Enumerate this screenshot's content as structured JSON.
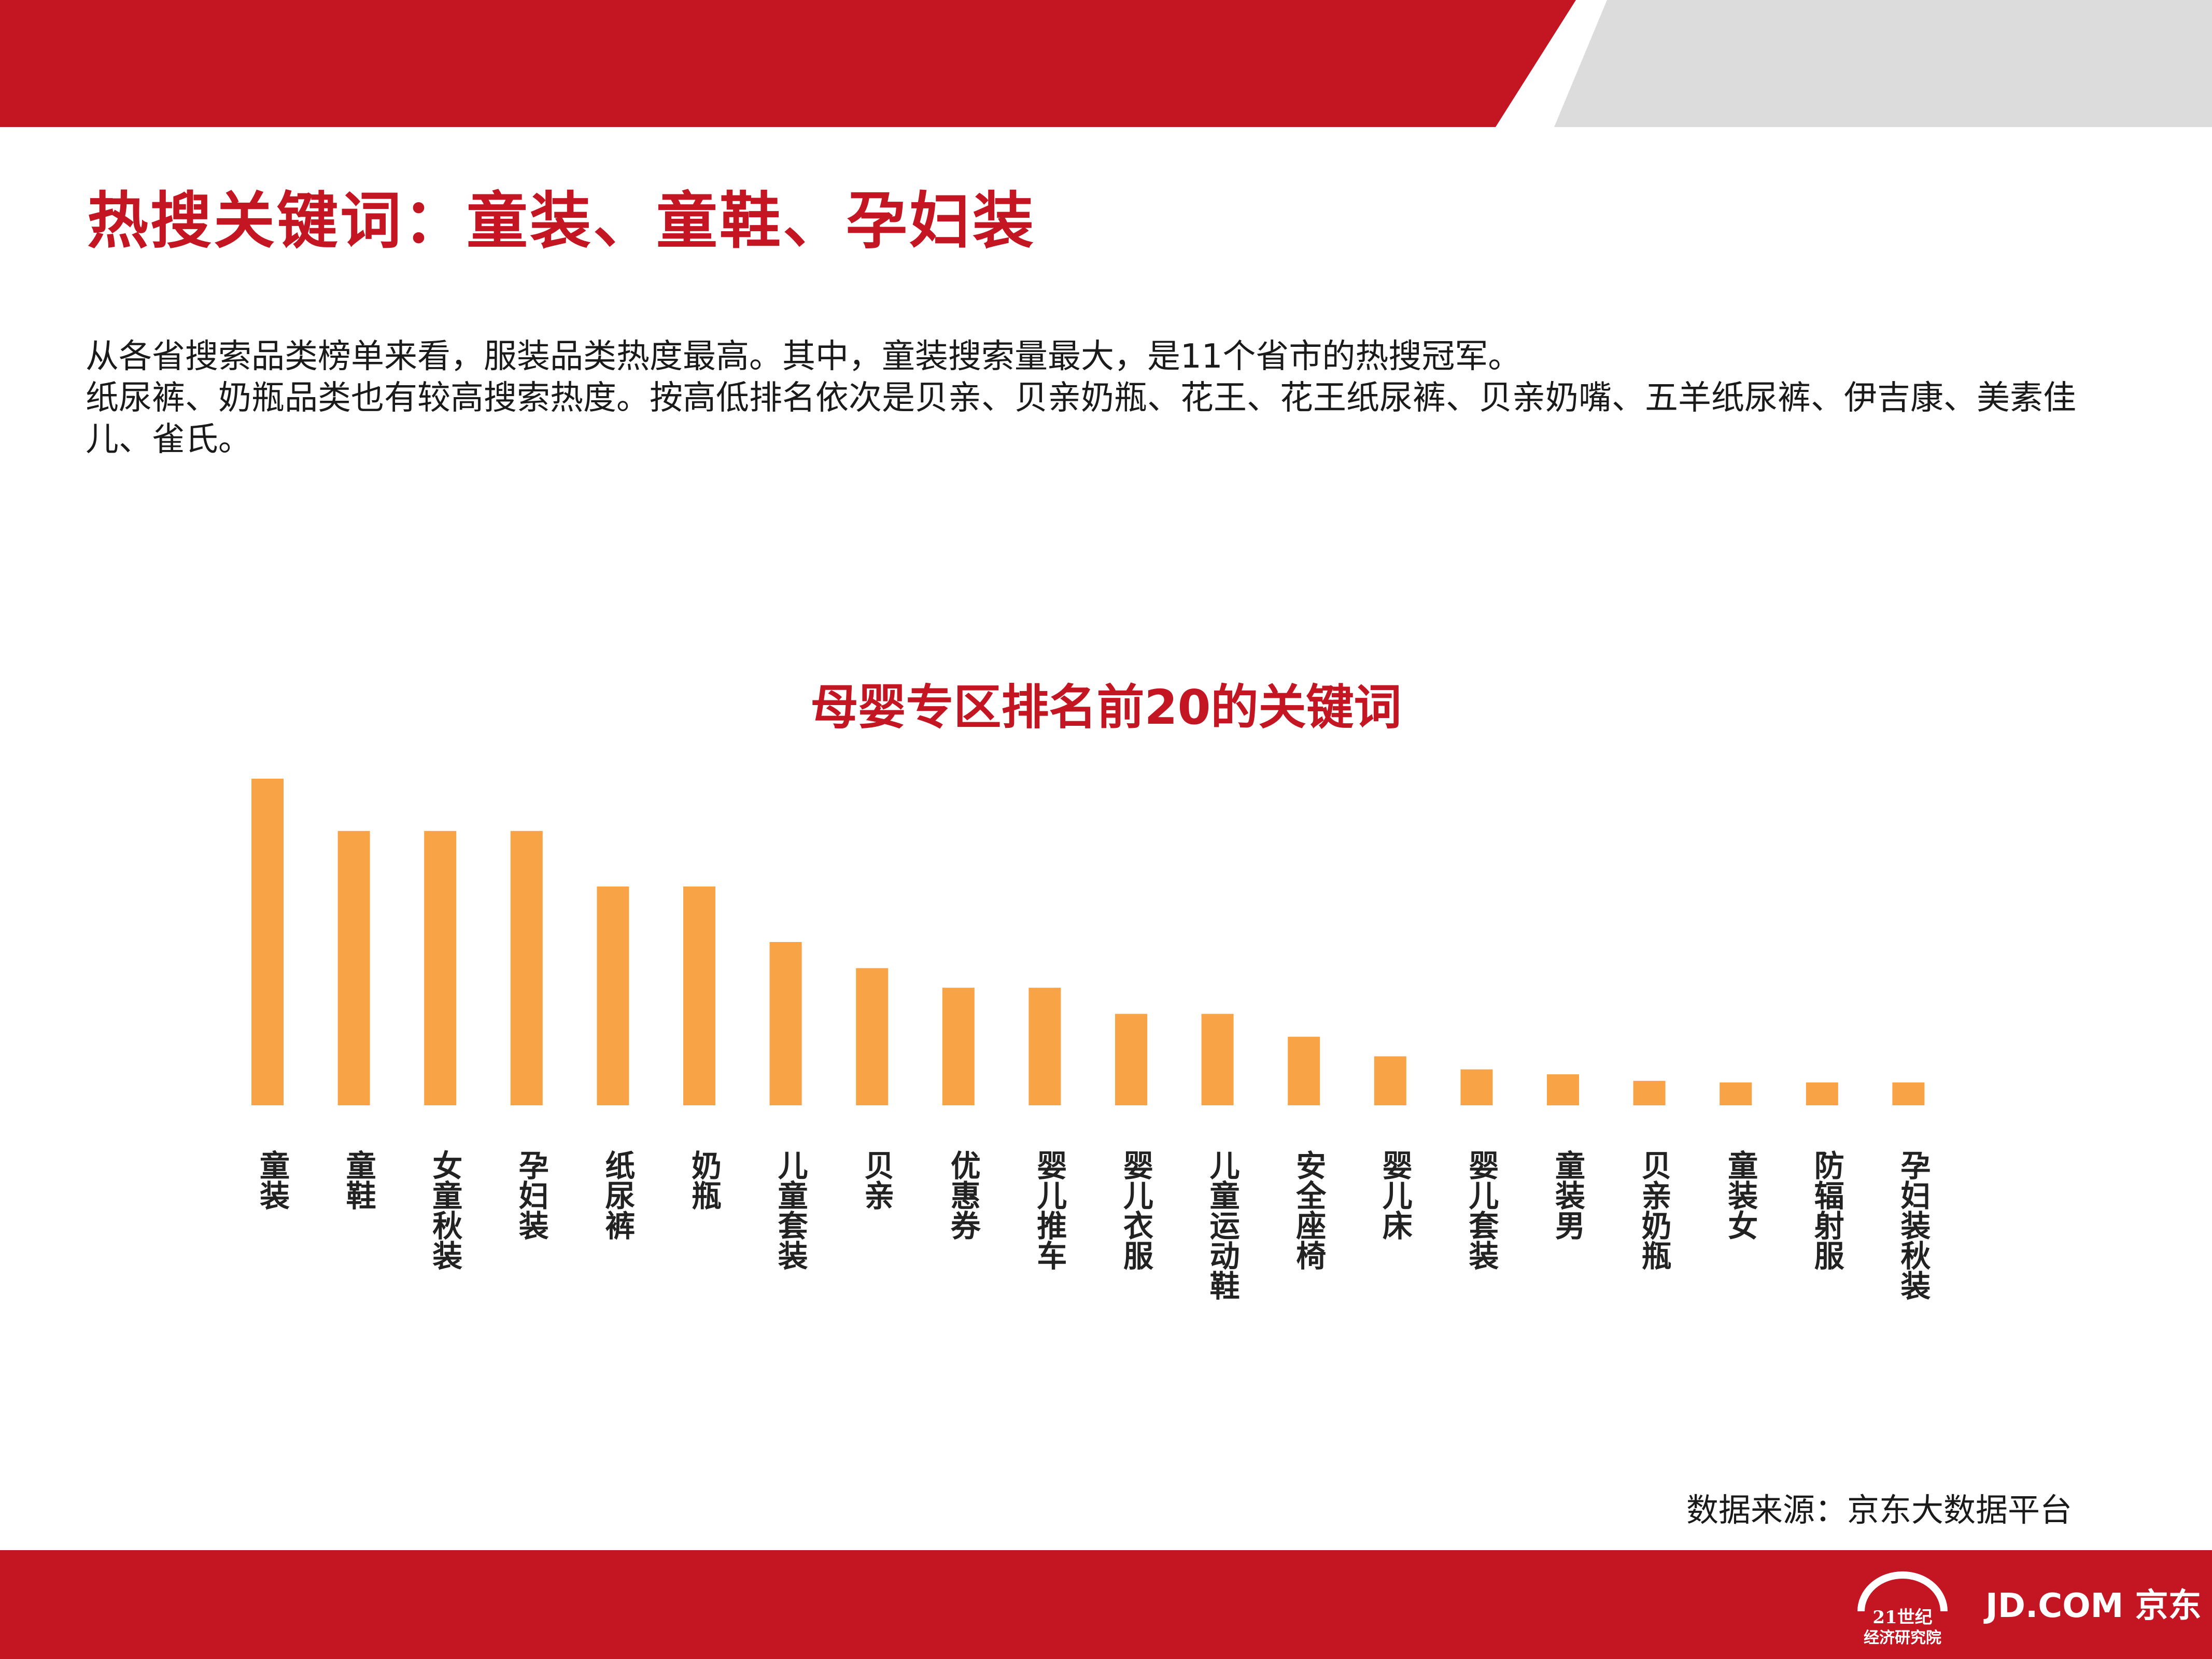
{
  "page_title": "热搜关键词：童装、童鞋、孕妇装",
  "summary": {
    "line1": "从各省搜索品类榜单来看，服装品类热度最高。其中，童装搜索量最大，是11个省市的热搜冠军。",
    "line2": "纸尿裤、奶瓶品类也有较高搜索热度。按高低排名依次是贝亲、贝亲奶瓶、花王、花王纸尿裤、贝亲奶嘴、五羊纸尿裤、伊吉康、美素佳儿、雀氏。"
  },
  "chart_data": {
    "type": "bar",
    "title": "母婴专区排名前20的关键词",
    "categories": [
      "童装",
      "童鞋",
      "女童秋装",
      "孕妇装",
      "纸尿裤",
      "奶瓶",
      "儿童套装",
      "贝亲",
      "优惠券",
      "婴儿推车",
      "婴儿衣服",
      "儿童运动鞋",
      "安全座椅",
      "婴儿床",
      "婴儿套装",
      "童装男",
      "贝亲奶瓶",
      "童装女",
      "防辐射服",
      "孕妇装秋装"
    ],
    "values": [
      100,
      84,
      84,
      84,
      67,
      67,
      50,
      42,
      36,
      36,
      28,
      28,
      21,
      15,
      11,
      9.5,
      7.5,
      7,
      7,
      7
    ],
    "ylim": [
      0,
      100
    ],
    "grid": false,
    "legend": "none",
    "bar_color": "#f8a346",
    "value_axis_visible": false
  },
  "source": "数据来源：京东大数据平台",
  "logos": {
    "institute_line1": "21世纪",
    "institute_line2": "经济研究院",
    "jd": "JD.COM 京东"
  },
  "colors": {
    "brand_red": "#c41622",
    "bar": "#f8a346",
    "band_gray": "#dcdcdc"
  }
}
